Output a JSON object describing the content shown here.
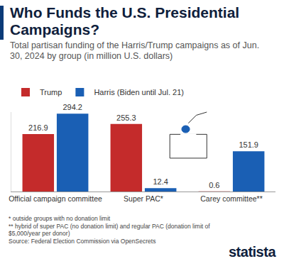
{
  "chart_data": {
    "type": "bar",
    "title": "Who Funds the U.S. Presidential Campaigns?",
    "subtitle": "Total partisan funding of the Harris/Trump campaigns as of Jun. 30, 2024 by group (in million U.S. dollars)",
    "categories": [
      "Official campaign committee",
      "Super PAC*",
      "Carey committee**"
    ],
    "series": [
      {
        "name": "Trump",
        "color": "#c42b2b",
        "values": [
          216.9,
          255.3,
          0.6
        ]
      },
      {
        "name": "Harris (Biden until Jul. 21)",
        "color": "#1a5fb4",
        "values": [
          294.2,
          12.4,
          151.9
        ]
      }
    ],
    "ylim": [
      0,
      300
    ],
    "yticks": [],
    "grid": false,
    "tick_labels": "x",
    "data_labels": true,
    "legend": "top left",
    "notes": [
      "* outside groups with no donation limit",
      "** hybrid of super PAC (no donation limit) and regular PAC (donation limit of $5,000/year per donor)",
      "Source: Federal Election Commission via OpenSecrets"
    ],
    "brand": "statista"
  }
}
